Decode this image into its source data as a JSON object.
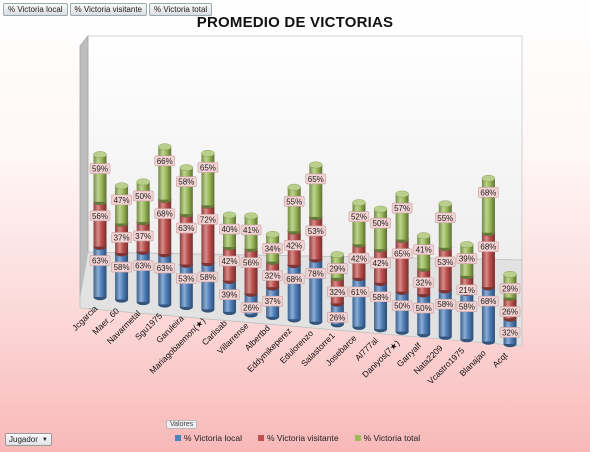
{
  "field_buttons": [
    "% Victoria local",
    "% Victoria visitante",
    "% Victoria total"
  ],
  "row_field": "Jugador",
  "values_label": "Valores",
  "colors": {
    "local": "#4f81bd",
    "visitante": "#c0504d",
    "total": "#9bbb59"
  },
  "chart_data": {
    "type": "bar",
    "title": "PROMEDIO DE VICTORIAS",
    "categories": [
      "Jcgarcia",
      "Maer_60",
      "Navarmetal",
      "Sgu1975",
      "Garuleira",
      "Mariagobaemon(★)",
      "Carlisab",
      "Villarrense",
      "Albertbd",
      "Eddymikeperez",
      "Edulorenzo",
      "Salastorre1",
      "Josebarce",
      "Al777al",
      "Daniyos(7★)",
      "Garryalf",
      "Nata2209",
      "Vcastro1975",
      "Blanajao",
      "Acqt"
    ],
    "series": [
      {
        "name": "% Victoria local",
        "values": [
          63,
          58,
          63,
          63,
          53,
          58,
          39,
          26,
          37,
          68,
          78,
          26,
          61,
          58,
          50,
          50,
          58,
          58,
          68,
          32
        ]
      },
      {
        "name": "% Victoria visitante",
        "values": [
          56,
          37,
          37,
          68,
          63,
          72,
          42,
          56,
          32,
          42,
          53,
          32,
          42,
          42,
          65,
          32,
          53,
          21,
          68,
          26
        ]
      },
      {
        "name": "% Victoria total",
        "values": [
          59,
          47,
          50,
          66,
          58,
          65,
          40,
          41,
          34,
          55,
          65,
          29,
          52,
          50,
          57,
          41,
          55,
          39,
          68,
          29
        ]
      }
    ],
    "value_suffix": "%",
    "stacked": true,
    "legend_position": "bottom"
  }
}
